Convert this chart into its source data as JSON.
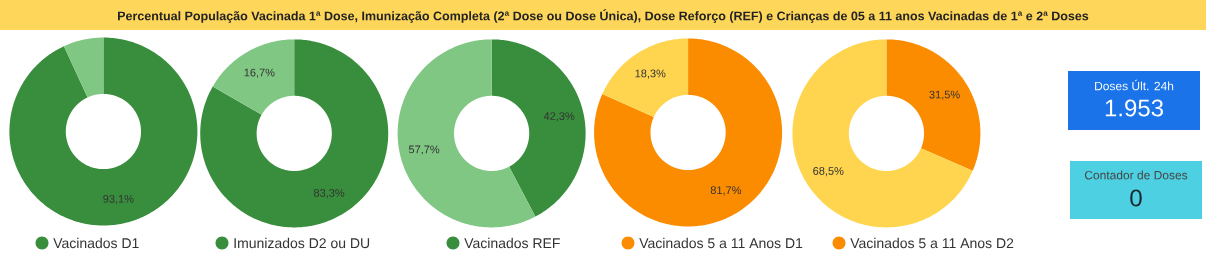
{
  "chart_data": [
    {
      "type": "other",
      "title": "Percentual População Vacinada 1ª Dose, Imunização Completa (2ª Dose ou Dose Única), Dose Reforço (REF) e Crianças de 05 a 11 anos Vacinadas de 1ª e 2ª Doses"
    },
    {
      "type": "donut",
      "categories": [
        "Vacinados D1",
        null
      ],
      "values": [
        93.1,
        6.9
      ],
      "colors": [
        "#388e3c",
        "#81c784"
      ],
      "value_labels": [
        "93,1%",
        null
      ],
      "legend": "bottom"
    },
    {
      "type": "donut",
      "categories": [
        "Imunizados D2 ou DU",
        null
      ],
      "values": [
        83.3,
        16.7
      ],
      "colors": [
        "#388e3c",
        "#81c784"
      ],
      "value_labels": [
        "83,3%",
        "16,7%"
      ],
      "legend": "bottom"
    },
    {
      "type": "donut",
      "categories": [
        "Vacinados REF",
        null
      ],
      "values": [
        42.3,
        57.7
      ],
      "colors": [
        "#388e3c",
        "#81c784"
      ],
      "value_labels": [
        "42,3%",
        "57,7%"
      ],
      "legend": "bottom"
    },
    {
      "type": "donut",
      "categories": [
        "Vacinados 5 a 11 Anos D1",
        null
      ],
      "values": [
        81.7,
        18.3
      ],
      "colors": [
        "#fb8c00",
        "#ffd54f"
      ],
      "value_labels": [
        "81,7%",
        "18,3%"
      ],
      "legend": "bottom"
    },
    {
      "type": "donut",
      "categories": [
        "Vacinados 5 a 11 Anos D2",
        null
      ],
      "values": [
        31.5,
        68.5
      ],
      "colors": [
        "#fb8c00",
        "#ffd54f"
      ],
      "value_labels": [
        "31,5%",
        "68,5%"
      ],
      "legend": "bottom"
    },
    {
      "type": "other",
      "title": "Doses Últ. 24h",
      "annotations": [
        "1.953"
      ],
      "color": "#1a73e8"
    },
    {
      "type": "other",
      "title": "Contador de Doses",
      "annotations": [
        "0"
      ],
      "color": "#4dd0e1"
    }
  ]
}
